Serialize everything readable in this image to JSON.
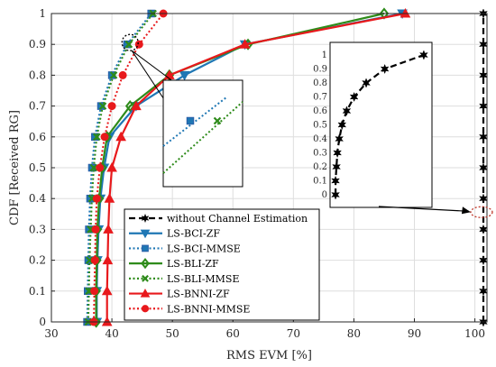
{
  "chart_data": {
    "type": "line",
    "title": "",
    "xlabel": "RMS EVM [%]",
    "ylabel": "CDF [Received RG]",
    "xlim": [
      30,
      102
    ],
    "ylim": [
      0,
      1
    ],
    "xticks": [
      30,
      40,
      50,
      60,
      70,
      80,
      90,
      100
    ],
    "yticks": [
      0,
      0.1,
      0.2,
      0.3,
      0.4,
      0.5,
      0.6,
      0.7,
      0.8,
      0.9,
      1
    ],
    "grid": true,
    "legend_position": "lower-left",
    "series": [
      {
        "name": "without Channel Estimation",
        "color": "#000000",
        "marker": "star",
        "line_style": "dashed",
        "x": [
          101.4,
          101.4,
          101.4,
          101.4,
          101.4,
          101.4,
          101.4,
          101.4,
          101.4,
          101.4,
          101.4
        ],
        "y": [
          0,
          0.1,
          0.2,
          0.3,
          0.4,
          0.5,
          0.6,
          0.7,
          0.8,
          0.9,
          1
        ]
      },
      {
        "name": "LS-BCI-ZF",
        "color": "#1f77b4",
        "marker": "triangle-down",
        "line_style": "solid",
        "x": [
          37.5,
          37.5,
          37.6,
          37.8,
          38.1,
          38.7,
          39.6,
          44,
          52,
          62,
          88
        ],
        "y": [
          0,
          0.1,
          0.2,
          0.3,
          0.4,
          0.5,
          0.6,
          0.7,
          0.8,
          0.9,
          1
        ]
      },
      {
        "name": "LS-BCI-MMSE",
        "color": "#1f77b4",
        "marker": "square",
        "line_style": "dotted",
        "x": [
          35.9,
          36,
          36.1,
          36.2,
          36.4,
          36.7,
          37.2,
          38.2,
          40,
          42.5,
          46.5
        ],
        "y": [
          0,
          0.1,
          0.2,
          0.3,
          0.4,
          0.5,
          0.6,
          0.7,
          0.8,
          0.9,
          1
        ]
      },
      {
        "name": "LS-BLI-ZF",
        "color": "#2e8b1a",
        "marker": "diamond",
        "line_style": "solid",
        "x": [
          37.4,
          37.4,
          37.5,
          37.6,
          37.9,
          38.4,
          39.2,
          43,
          49.5,
          62.5,
          85
        ],
        "y": [
          0,
          0.1,
          0.2,
          0.3,
          0.4,
          0.5,
          0.6,
          0.7,
          0.8,
          0.9,
          1
        ]
      },
      {
        "name": "LS-BLI-MMSE",
        "color": "#2e8b1a",
        "marker": "x",
        "line_style": "dotted",
        "x": [
          36.1,
          36.2,
          36.3,
          36.5,
          36.7,
          37,
          37.5,
          38.5,
          40.3,
          42.8,
          46.8
        ],
        "y": [
          0,
          0.1,
          0.2,
          0.3,
          0.4,
          0.5,
          0.6,
          0.7,
          0.8,
          0.9,
          1
        ]
      },
      {
        "name": "LS-BNNI-ZF",
        "color": "#e8191c",
        "marker": "triangle-up",
        "line_style": "solid",
        "x": [
          39.2,
          39.2,
          39.3,
          39.4,
          39.6,
          40,
          41.5,
          44,
          49.5,
          62,
          88.5
        ],
        "y": [
          0,
          0.1,
          0.2,
          0.3,
          0.4,
          0.5,
          0.6,
          0.7,
          0.8,
          0.9,
          1
        ]
      },
      {
        "name": "LS-BNNI-MMSE",
        "color": "#e8191c",
        "marker": "circle",
        "line_style": "dotted",
        "x": [
          37,
          37.1,
          37.2,
          37.3,
          37.5,
          38,
          38.8,
          40,
          41.8,
          44.5,
          48.5
        ],
        "y": [
          0,
          0.1,
          0.2,
          0.3,
          0.4,
          0.5,
          0.6,
          0.7,
          0.8,
          0.9,
          1
        ]
      }
    ],
    "inset_zoom": {
      "highlight_x": 43,
      "highlight_y": 0.9,
      "series_points": [
        {
          "series": "LS-BCI-MMSE",
          "x": 42.5,
          "y": 0.9
        },
        {
          "series": "LS-BLI-MMSE",
          "x": 42.8,
          "y": 0.9
        }
      ]
    },
    "inset_without": {
      "tick_labels": [
        "0",
        "0.1",
        "0.2",
        "0.3",
        "0.4",
        "0.5",
        "0.6",
        "0.7",
        "0.8",
        "0.9",
        "1"
      ],
      "curve_y": [
        0,
        0.1,
        0.2,
        0.3,
        0.4,
        0.5,
        0.6,
        0.7,
        0.8,
        0.9,
        1
      ],
      "curve_x_frac": [
        0.02,
        0.02,
        0.03,
        0.04,
        0.06,
        0.09,
        0.14,
        0.22,
        0.35,
        0.55,
        0.97
      ]
    }
  }
}
